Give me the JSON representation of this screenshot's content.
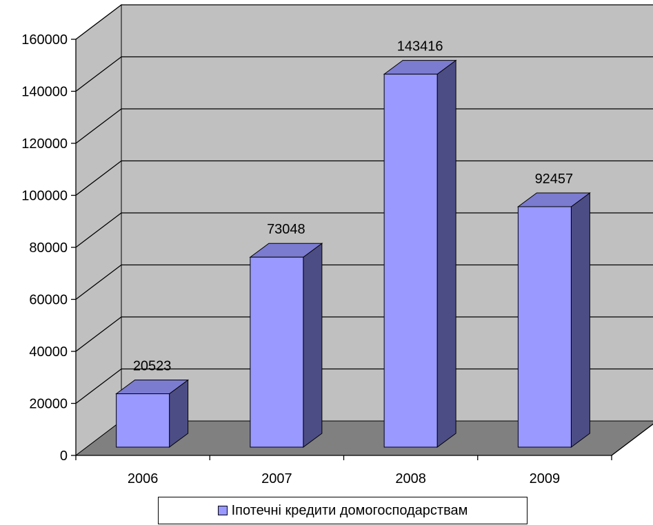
{
  "chart_data": {
    "type": "bar",
    "categories": [
      "2006",
      "2007",
      "2008",
      "2009"
    ],
    "series": [
      {
        "name": "Іпотечні кредити домогосподарствам",
        "values": [
          20523,
          73048,
          143416,
          92457
        ]
      }
    ],
    "ylim": [
      0,
      160000
    ],
    "yticks": [
      "0",
      "20000",
      "40000",
      "60000",
      "80000",
      "100000",
      "120000",
      "140000",
      "160000"
    ],
    "data_labels": [
      "20523",
      "73048",
      "143416",
      "92457"
    ],
    "grid": true,
    "legend": "bottom",
    "colors": {
      "bar_front": "#9999ff",
      "bar_side": "#4d4d85",
      "bar_top": "#7b7bd0",
      "wall": "#c0c0c0",
      "floor": "#808080",
      "grid": "#000000"
    }
  }
}
